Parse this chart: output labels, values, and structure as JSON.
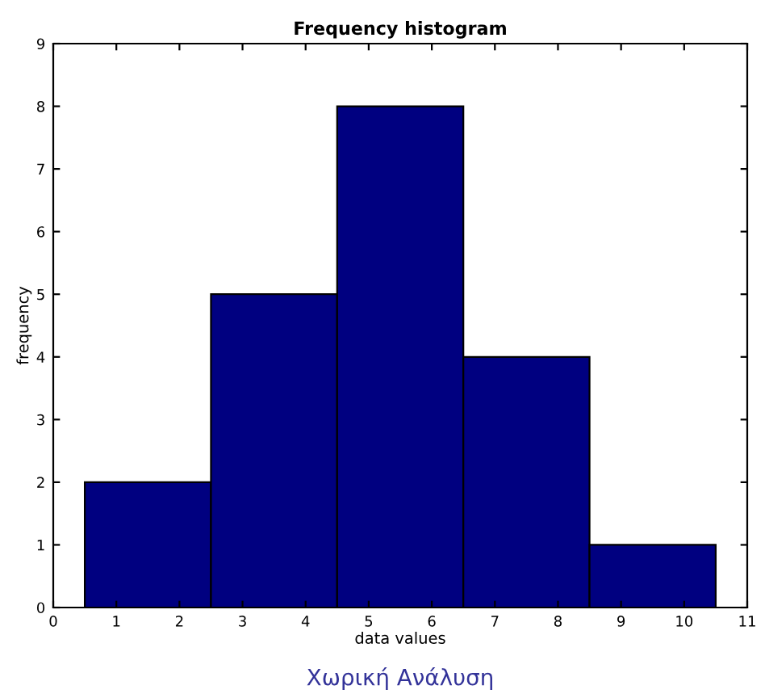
{
  "chart_data": {
    "type": "histogram",
    "title": "Frequency histogram",
    "xlabel": "data values",
    "ylabel": "frequency",
    "bins": [
      0.5,
      2.5,
      4.5,
      6.5,
      8.5,
      10.5
    ],
    "values": [
      2,
      5,
      8,
      4,
      1
    ],
    "color": "#000080",
    "xlim": [
      0,
      11
    ],
    "xticks": [
      0,
      1,
      2,
      3,
      4,
      5,
      6,
      7,
      8,
      9,
      10,
      11
    ],
    "ylim": [
      0,
      9
    ],
    "yticks": [
      0,
      1,
      2,
      3,
      4,
      5,
      6,
      7,
      8,
      9
    ],
    "grid": false,
    "annotations": [
      "Χωρική Ανάλυση"
    ]
  }
}
